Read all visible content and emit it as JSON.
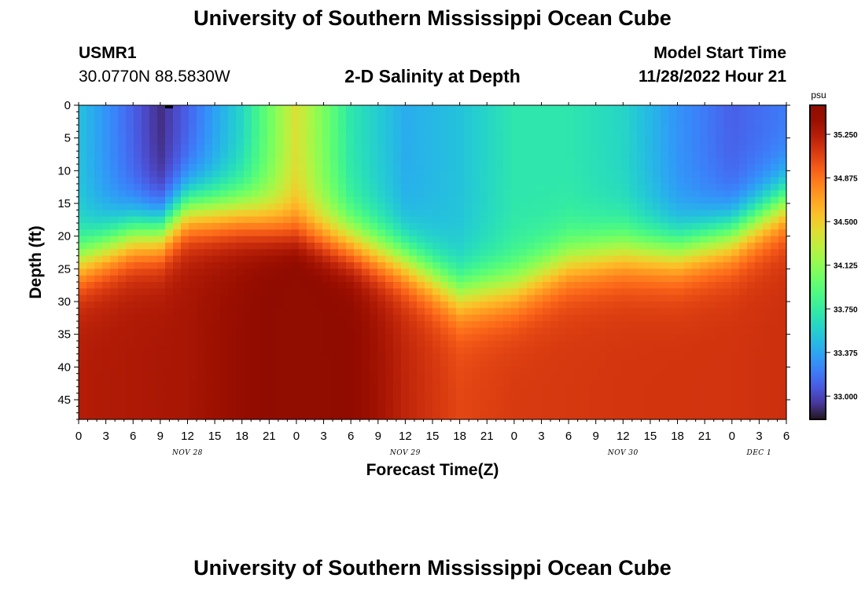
{
  "header": {
    "title": "University of Southern Mississippi Ocean Cube",
    "station_id": "USMR1",
    "coordinates": "30.0770N  88.5830W",
    "plot_title": "2-D Salinity at Depth",
    "model_start_label": "Model Start Time",
    "model_start_value": "11/28/2022 Hour 21"
  },
  "footer": {
    "title": "University of Southern Mississippi Ocean Cube"
  },
  "chart_data": {
    "type": "heatmap",
    "title": "2-D Salinity at Depth",
    "xlabel": "Forecast Time(Z)",
    "ylabel": "Depth (ft)",
    "x_tick_labels": [
      "0",
      "3",
      "6",
      "9",
      "12",
      "15",
      "18",
      "21",
      "0",
      "3",
      "6",
      "9",
      "12",
      "15",
      "18",
      "21",
      "0",
      "3",
      "6",
      "9",
      "12",
      "15",
      "18",
      "21",
      "0",
      "3",
      "6"
    ],
    "date_labels": [
      {
        "label": "NOV 28",
        "at_tick": 4
      },
      {
        "label": "NOV 29",
        "at_tick": 12
      },
      {
        "label": "NOV 30",
        "at_tick": 20
      },
      {
        "label": "DEC 1",
        "at_tick": 25
      }
    ],
    "x_range_hours": [
      0,
      78
    ],
    "y_ticks": [
      0,
      5,
      10,
      15,
      20,
      25,
      30,
      35,
      40,
      45
    ],
    "ylim": [
      0,
      48
    ],
    "y_inverted": true,
    "colorbar": {
      "unit": "psu",
      "min": 32.8,
      "max": 35.5,
      "tick_values": [
        33.0,
        33.375,
        33.75,
        34.125,
        34.5,
        34.875,
        35.25
      ],
      "tick_labels": [
        "33.000",
        "33.375",
        "33.750",
        "34.125",
        "34.500",
        "34.875",
        "35.250"
      ],
      "colormap": "turbo"
    },
    "halocline_depth_ft": {
      "hours": [
        0,
        6,
        9,
        12,
        18,
        24,
        30,
        36,
        42,
        48,
        54,
        60,
        66,
        72,
        78
      ],
      "depth": [
        24,
        20,
        19.5,
        16,
        16.5,
        19,
        21,
        24,
        29,
        28,
        24,
        22.5,
        22.5,
        20,
        15
      ]
    },
    "surface_salinity_psu": {
      "hours": [
        0,
        6,
        9,
        12,
        18,
        24,
        30,
        36,
        42,
        48,
        54,
        60,
        66,
        72,
        78
      ],
      "values": [
        33.5,
        33.1,
        32.9,
        33.1,
        33.6,
        34.4,
        33.7,
        33.4,
        33.5,
        33.7,
        33.7,
        33.6,
        33.3,
        33.1,
        33.2
      ]
    },
    "bottom_salinity_psu": {
      "hours": [
        0,
        12,
        18,
        24,
        30,
        36,
        42,
        48,
        60,
        72,
        78
      ],
      "values": [
        35.25,
        35.3,
        35.4,
        35.55,
        35.45,
        35.2,
        35.05,
        35.1,
        35.12,
        35.13,
        35.15
      ]
    }
  }
}
